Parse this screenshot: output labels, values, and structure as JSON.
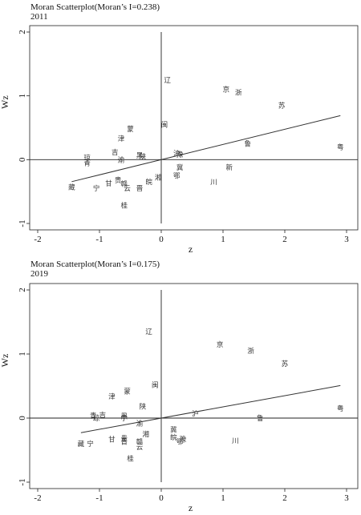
{
  "chart_data": [
    {
      "type": "scatter",
      "title": "Moran Scatterplot(Moran’s I=0.238)",
      "subtitle": "2011",
      "xlabel": "z",
      "ylabel": "Wz",
      "xlim": [
        -2,
        3
      ],
      "ylim": [
        -1,
        2
      ],
      "x_ticks": [
        -2,
        -1,
        0,
        1,
        2,
        3
      ],
      "y_ticks": [
        -1,
        0,
        1,
        2
      ],
      "slope": 0.238,
      "points": [
        {
          "label": "辽",
          "x": 0.1,
          "y": 1.25
        },
        {
          "label": "京",
          "x": 1.05,
          "y": 1.1
        },
        {
          "label": "浙",
          "x": 1.25,
          "y": 1.05
        },
        {
          "label": "苏",
          "x": 1.95,
          "y": 0.85
        },
        {
          "label": "粤",
          "x": 2.9,
          "y": 0.2
        },
        {
          "label": "闽",
          "x": 0.05,
          "y": 0.55
        },
        {
          "label": "蒙",
          "x": -0.5,
          "y": 0.48
        },
        {
          "label": "津",
          "x": -0.65,
          "y": 0.33
        },
        {
          "label": "鲁",
          "x": 1.4,
          "y": 0.25
        },
        {
          "label": "吉",
          "x": -0.75,
          "y": 0.12
        },
        {
          "label": "黑",
          "x": -0.35,
          "y": 0.07
        },
        {
          "label": "陕",
          "x": -0.3,
          "y": 0.05
        },
        {
          "label": "沪",
          "x": 0.25,
          "y": 0.1
        },
        {
          "label": "豫",
          "x": 0.3,
          "y": 0.08
        },
        {
          "label": "琼",
          "x": -1.2,
          "y": 0.03
        },
        {
          "label": "渝",
          "x": -0.65,
          "y": 0.0
        },
        {
          "label": "青",
          "x": -1.2,
          "y": -0.05
        },
        {
          "label": "新",
          "x": 1.1,
          "y": -0.12
        },
        {
          "label": "冀",
          "x": 0.3,
          "y": -0.12
        },
        {
          "label": "鄂",
          "x": 0.25,
          "y": -0.25
        },
        {
          "label": "湘",
          "x": -0.05,
          "y": -0.28
        },
        {
          "label": "皖",
          "x": -0.2,
          "y": -0.35
        },
        {
          "label": "川",
          "x": 0.85,
          "y": -0.35
        },
        {
          "label": "贵",
          "x": -0.7,
          "y": -0.32
        },
        {
          "label": "甘",
          "x": -0.85,
          "y": -0.37
        },
        {
          "label": "赣",
          "x": -0.6,
          "y": -0.38
        },
        {
          "label": "云",
          "x": -0.55,
          "y": -0.45
        },
        {
          "label": "晋",
          "x": -0.35,
          "y": -0.45
        },
        {
          "label": "藏",
          "x": -1.45,
          "y": -0.43
        },
        {
          "label": "宁",
          "x": -1.05,
          "y": -0.45
        },
        {
          "label": "桂",
          "x": -0.6,
          "y": -0.72
        }
      ]
    },
    {
      "type": "scatter",
      "title": "Moran Scatterplot(Moran’s I=0.175)",
      "subtitle": "2019",
      "xlabel": "z",
      "ylabel": "Wz",
      "xlim": [
        -2,
        3
      ],
      "ylim": [
        -1,
        2
      ],
      "x_ticks": [
        -2,
        -1,
        0,
        1,
        2,
        3
      ],
      "y_ticks": [
        -1,
        0,
        1,
        2
      ],
      "slope": 0.175,
      "points": [
        {
          "label": "辽",
          "x": -0.2,
          "y": 1.35
        },
        {
          "label": "京",
          "x": 0.95,
          "y": 1.15
        },
        {
          "label": "浙",
          "x": 1.45,
          "y": 1.05
        },
        {
          "label": "苏",
          "x": 2.0,
          "y": 0.85
        },
        {
          "label": "粤",
          "x": 2.9,
          "y": 0.15
        },
        {
          "label": "闽",
          "x": -0.1,
          "y": 0.52
        },
        {
          "label": "蒙",
          "x": -0.55,
          "y": 0.42
        },
        {
          "label": "津",
          "x": -0.8,
          "y": 0.34
        },
        {
          "label": "陕",
          "x": -0.3,
          "y": 0.18
        },
        {
          "label": "沪",
          "x": 0.55,
          "y": 0.07
        },
        {
          "label": "鲁",
          "x": 1.6,
          "y": 0.0
        },
        {
          "label": "吉",
          "x": -0.95,
          "y": 0.05
        },
        {
          "label": "青",
          "x": -1.1,
          "y": 0.04
        },
        {
          "label": "琼",
          "x": -1.05,
          "y": 0.0
        },
        {
          "label": "黑",
          "x": -0.6,
          "y": 0.03
        },
        {
          "label": "宁",
          "x": -0.6,
          "y": 0.0
        },
        {
          "label": "渝",
          "x": -0.35,
          "y": -0.08
        },
        {
          "label": "冀",
          "x": 0.2,
          "y": -0.18
        },
        {
          "label": "湘",
          "x": -0.25,
          "y": -0.25
        },
        {
          "label": "皖",
          "x": 0.2,
          "y": -0.3
        },
        {
          "label": "豫",
          "x": 0.35,
          "y": -0.33
        },
        {
          "label": "鄂",
          "x": 0.3,
          "y": -0.37
        },
        {
          "label": "川",
          "x": 1.2,
          "y": -0.35
        },
        {
          "label": "甘",
          "x": -0.8,
          "y": -0.33
        },
        {
          "label": "贵",
          "x": -0.6,
          "y": -0.32
        },
        {
          "label": "晋",
          "x": -0.6,
          "y": -0.37
        },
        {
          "label": "赣",
          "x": -0.35,
          "y": -0.37
        },
        {
          "label": "云",
          "x": -0.35,
          "y": -0.45
        },
        {
          "label": "藏",
          "x": -1.3,
          "y": -0.4
        },
        {
          "label": "宁",
          "x": -1.15,
          "y": -0.4
        },
        {
          "label": "桂",
          "x": -0.5,
          "y": -0.63
        }
      ]
    }
  ]
}
